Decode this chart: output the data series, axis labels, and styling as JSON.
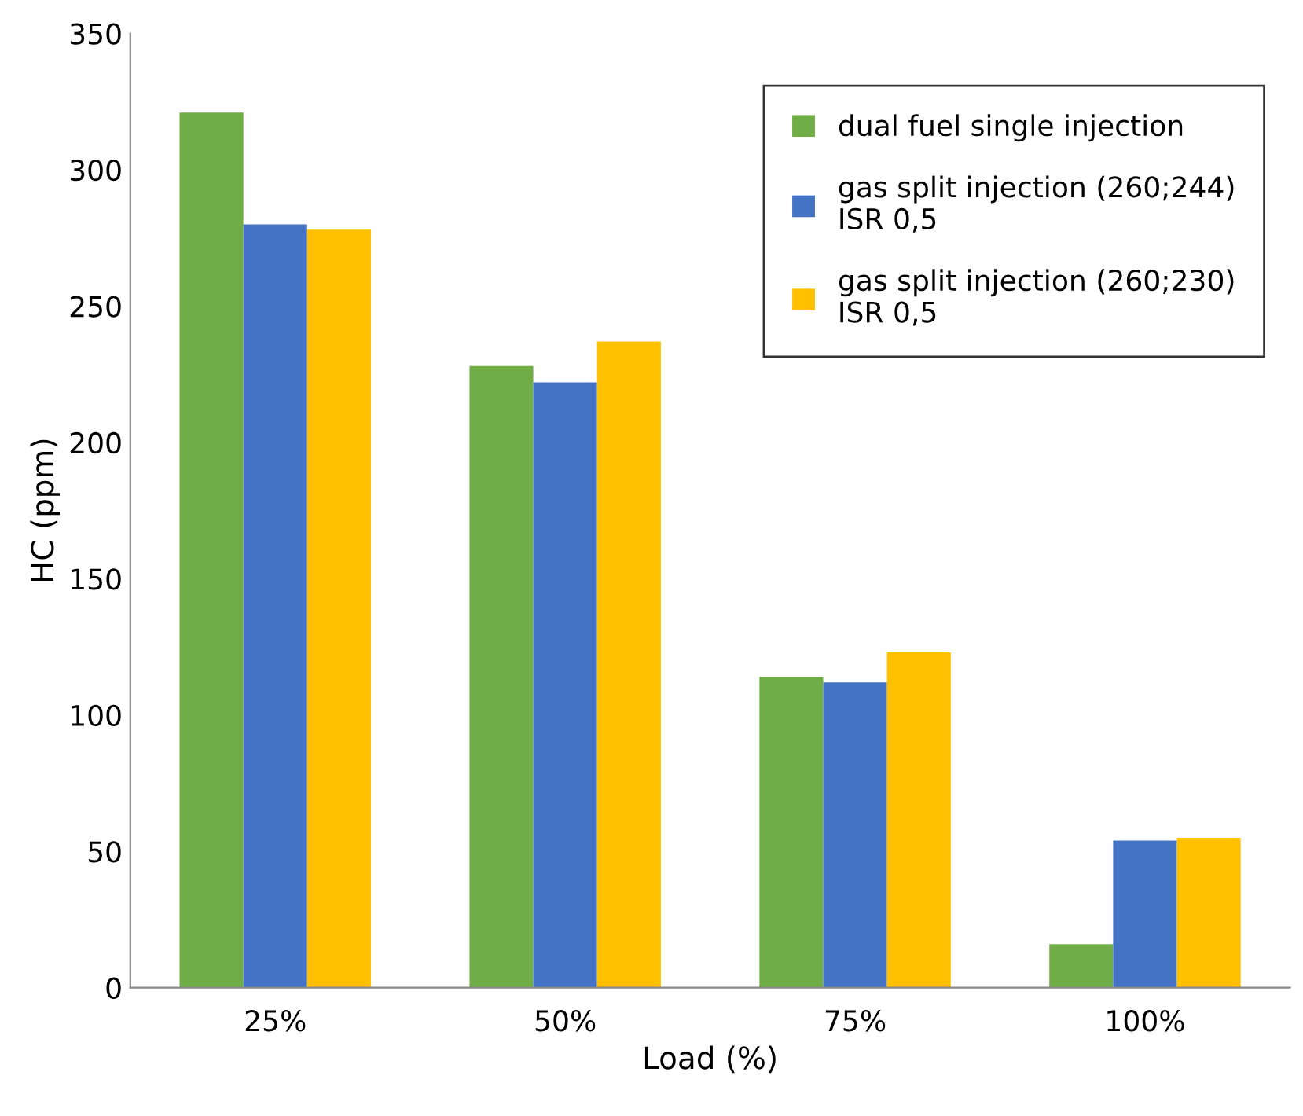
{
  "chart_data": {
    "type": "bar",
    "xlabel": "Load (%)",
    "ylabel": "HC (ppm)",
    "categories": [
      "25%",
      "50%",
      "75%",
      "100%"
    ],
    "series": [
      {
        "name": "dual fuel single injection",
        "color": "#70ad47",
        "values": [
          321,
          228,
          114,
          16
        ]
      },
      {
        "name": "gas split injection (260;244)\nISR 0,5",
        "color": "#4472c4",
        "values": [
          280,
          222,
          112,
          54
        ]
      },
      {
        "name": "gas split injection (260;230)\nISR 0,5",
        "color": "#ffc000",
        "values": [
          278,
          237,
          123,
          55
        ]
      }
    ],
    "ylim": [
      0,
      350
    ],
    "yticks": [
      0,
      50,
      100,
      150,
      200,
      250,
      300,
      350
    ],
    "grid": false,
    "legend": "top right"
  }
}
